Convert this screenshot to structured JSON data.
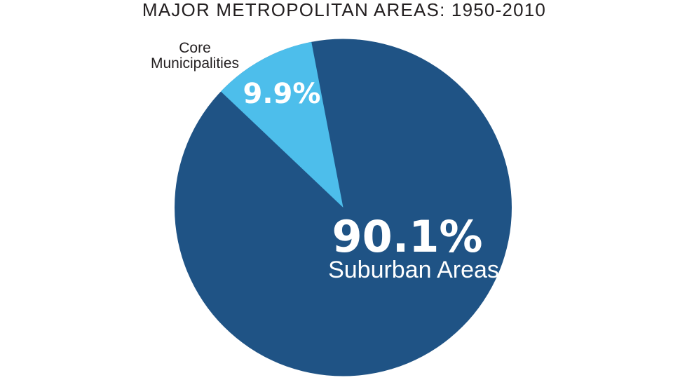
{
  "title": "MAJOR METROPOLITAN AREAS: 1950-2010",
  "chart_data": {
    "type": "pie",
    "title": "MAJOR METROPOLITAN AREAS: 1950-2010",
    "slices": [
      {
        "label": "Suburban Areas",
        "value": 90.1,
        "display": "90.1%",
        "color": "#1F5385"
      },
      {
        "label": "Core Municipalities",
        "value": 9.9,
        "display": "9.9%",
        "color": "#4DBEEB"
      }
    ],
    "core_label_lines": [
      "Core",
      "Municipalities"
    ],
    "core_slice_start_angle_deg": -46.5,
    "legend_position": "none",
    "value_label_color": "#FFFFFF",
    "outside_label_color": "#231F20",
    "background_color": "#FFFFFF"
  }
}
